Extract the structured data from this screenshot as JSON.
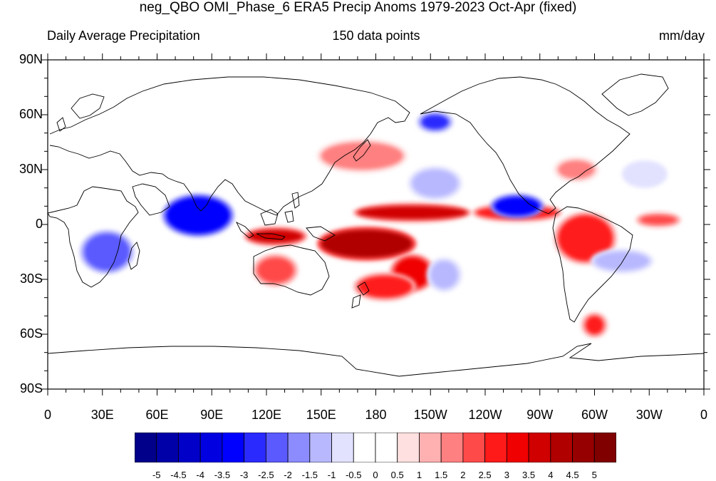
{
  "title": "neg_QBO OMI_Phase_6 ERA5 Precip Anoms 1979-2023 Oct-Apr (fixed)",
  "subtitle_left": "Daily Average Precipitation",
  "subtitle_center": "150 data points",
  "subtitle_right": "mm/day",
  "lat_labels": [
    "90N",
    "60N",
    "30N",
    "0",
    "30S",
    "60S",
    "90S"
  ],
  "lon_labels": [
    "0",
    "30E",
    "60E",
    "90E",
    "120E",
    "150E",
    "180",
    "150W",
    "120W",
    "90W",
    "60W",
    "30W",
    "0"
  ],
  "colorbar": {
    "labels": [
      "-5",
      "-4.5",
      "-4",
      "-3.5",
      "-3",
      "-2.5",
      "-2",
      "-1.5",
      "-1",
      "-0.5",
      "0",
      "0.5",
      "1",
      "1.5",
      "2",
      "2.5",
      "3",
      "3.5",
      "4",
      "4.5",
      "5"
    ],
    "colors": [
      "#00008a",
      "#0000a8",
      "#0000c8",
      "#0000e0",
      "#0000ff",
      "#2a2aff",
      "#5a5aff",
      "#8c8cff",
      "#b8b8ff",
      "#e2e2ff",
      "#ffffff",
      "#ffffff",
      "#ffe0e0",
      "#ffb0b0",
      "#ff8080",
      "#ff4a4a",
      "#ff1a1a",
      "#f00000",
      "#d00000",
      "#b00000",
      "#960000",
      "#800000"
    ]
  },
  "chart_data": {
    "type": "heatmap",
    "title": "neg_QBO OMI_Phase_6 ERA5 Precip Anoms 1979-2023 Oct-Apr (fixed)",
    "variable": "Daily Average Precipitation",
    "units": "mm/day",
    "n_points": 150,
    "xlim": [
      0,
      360
    ],
    "ylim": [
      -90,
      90
    ],
    "levels": [
      -5,
      -4.5,
      -4,
      -3.5,
      -3,
      -2.5,
      -2,
      -1.5,
      -1,
      -0.5,
      0,
      0.5,
      1,
      1.5,
      2,
      2.5,
      3,
      3.5,
      4,
      4.5,
      5
    ],
    "anomaly_regions": [
      {
        "lon": [
          170,
          230
        ],
        "lat": [
          3,
          10
        ],
        "value": 3.5
      },
      {
        "lon": [
          235,
          280
        ],
        "lat": [
          3,
          10
        ],
        "value": 2.5
      },
      {
        "lon": [
          150,
          200
        ],
        "lat": [
          -18,
          -3
        ],
        "value": 4
      },
      {
        "lon": [
          190,
          210
        ],
        "lat": [
          -35,
          -18
        ],
        "value": 3
      },
      {
        "lon": [
          170,
          200
        ],
        "lat": [
          -40,
          -28
        ],
        "value": 2.5
      },
      {
        "lon": [
          110,
          140
        ],
        "lat": [
          -10,
          -3
        ],
        "value": 3.5
      },
      {
        "lon": [
          115,
          135
        ],
        "lat": [
          -32,
          -18
        ],
        "value": 2
      },
      {
        "lon": [
          280,
          310
        ],
        "lat": [
          -20,
          5
        ],
        "value": 2.5
      },
      {
        "lon": [
          325,
          345
        ],
        "lat": [
          0,
          5
        ],
        "value": 2
      },
      {
        "lon": [
          150,
          195
        ],
        "lat": [
          30,
          45
        ],
        "value": 1.5
      },
      {
        "lon": [
          280,
          300
        ],
        "lat": [
          25,
          35
        ],
        "value": 1.5
      },
      {
        "lon": [
          295,
          305
        ],
        "lat": [
          -60,
          -50
        ],
        "value": 2.5
      },
      {
        "lon": [
          65,
          100
        ],
        "lat": [
          -5,
          15
        ],
        "value": -3.5
      },
      {
        "lon": [
          20,
          45
        ],
        "lat": [
          -25,
          -5
        ],
        "value": -2.5
      },
      {
        "lon": [
          245,
          270
        ],
        "lat": [
          5,
          15
        ],
        "value": -3.5
      },
      {
        "lon": [
          200,
          225
        ],
        "lat": [
          15,
          30
        ],
        "value": -1.5
      },
      {
        "lon": [
          205,
          220
        ],
        "lat": [
          52,
          60
        ],
        "value": -3
      },
      {
        "lon": [
          210,
          225
        ],
        "lat": [
          -35,
          -20
        ],
        "value": -1.5
      },
      {
        "lon": [
          300,
          330
        ],
        "lat": [
          -25,
          -15
        ],
        "value": -1.5
      },
      {
        "lon": [
          315,
          340
        ],
        "lat": [
          20,
          35
        ],
        "value": -1
      }
    ]
  }
}
